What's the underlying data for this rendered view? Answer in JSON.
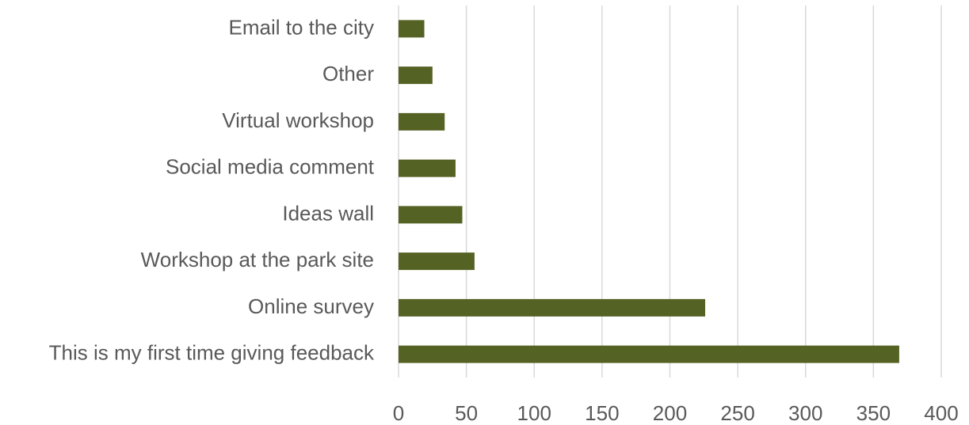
{
  "chart_data": {
    "type": "barh",
    "categories": [
      "Email to the city",
      "Other",
      "Virtual workshop",
      "Social media comment",
      "Ideas wall",
      "Workshop at the park site",
      "Online survey",
      "This is my first time giving feedback"
    ],
    "values": [
      19,
      25,
      34,
      42,
      47,
      56,
      226,
      369
    ],
    "color": "#546223",
    "xlim": [
      0,
      400
    ],
    "xticks": [
      0,
      50,
      100,
      150,
      200,
      250,
      300,
      350,
      400
    ],
    "grid": true
  }
}
